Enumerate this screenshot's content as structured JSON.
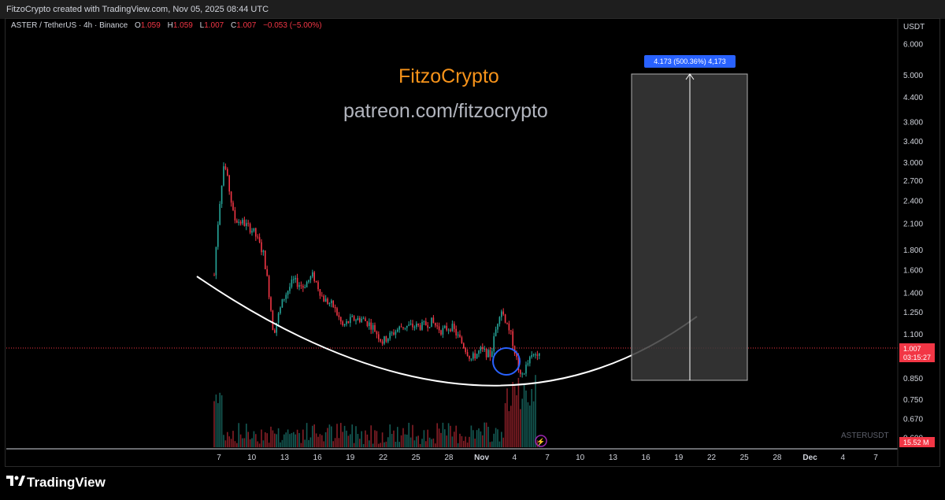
{
  "credit": "FitzoCrypto created with TradingView.com, Nov 05, 2025 08:44 UTC",
  "legend": {
    "symbol": "ASTER / TetherUS · 4h · Binance",
    "o_label": "O",
    "o": "1.059",
    "h_label": "H",
    "h": "1.059",
    "l_label": "L",
    "l": "1.007",
    "c_label": "C",
    "c": "1.007",
    "change": "−0.053 (−5.00%)"
  },
  "watermark": {
    "name": "FitzoCrypto",
    "url": "patreon.com/fitzocrypto"
  },
  "footer_brand": "TradingView",
  "symbol_watermark": "ASTERUSDT",
  "colors": {
    "up": "#26a69a",
    "down": "#f23645",
    "accent": "#2962ff",
    "brand": "#f7931a"
  },
  "chart_data": {
    "type": "candlestick",
    "y_scale": "log",
    "currency": "USDT",
    "y_ticks": [
      "6.000",
      "5.000",
      "4.400",
      "3.800",
      "3.400",
      "3.000",
      "2.700",
      "2.400",
      "2.100",
      "1.800",
      "1.600",
      "1.400",
      "1.250",
      "1.100",
      "1.007",
      "0.850",
      "0.750",
      "0.670",
      "0.600"
    ],
    "x_ticks": [
      "7",
      "10",
      "13",
      "16",
      "19",
      "22",
      "25",
      "28",
      "Nov",
      "4",
      "7",
      "10",
      "13",
      "16",
      "19",
      "22",
      "25",
      "28",
      "Dec",
      "4",
      "7"
    ],
    "current_price": {
      "label": "1.007",
      "countdown": "03:15:27"
    },
    "volume_label": "15.52 M",
    "projection": {
      "label": "4.173 (500.36%) 4,173",
      "from": 0.836,
      "to": 5.0
    },
    "price_path": [
      [
        "Oct 7",
        1.55
      ],
      [
        "Oct 7",
        3.0
      ],
      [
        "Oct 7",
        2.15
      ],
      [
        "Oct 8",
        2.1
      ],
      [
        "Oct 9",
        2.0
      ],
      [
        "Oct 10",
        1.75
      ],
      [
        "Oct 11",
        1.1
      ],
      [
        "Oct 12",
        1.35
      ],
      [
        "Oct 13",
        1.5
      ],
      [
        "Oct 14",
        1.45
      ],
      [
        "Oct 15",
        1.55
      ],
      [
        "Oct 16",
        1.35
      ],
      [
        "Oct 17",
        1.3
      ],
      [
        "Oct 18",
        1.15
      ],
      [
        "Oct 19",
        1.2
      ],
      [
        "Oct 20",
        1.2
      ],
      [
        "Oct 21",
        1.15
      ],
      [
        "Oct 22",
        1.05
      ],
      [
        "Oct 23",
        1.1
      ],
      [
        "Oct 24",
        1.15
      ],
      [
        "Oct 25",
        1.15
      ],
      [
        "Oct 26",
        1.15
      ],
      [
        "Oct 27",
        1.18
      ],
      [
        "Oct 28",
        1.12
      ],
      [
        "Oct 29",
        1.15
      ],
      [
        "Oct 30",
        1.05
      ],
      [
        "Oct 31",
        0.95
      ],
      [
        "Nov 1",
        1.0
      ],
      [
        "Nov 2",
        0.97
      ],
      [
        "Nov 2",
        1.28
      ],
      [
        "Nov 3",
        1.1
      ],
      [
        "Nov 3",
        0.85
      ],
      [
        "Nov 4",
        0.95
      ],
      [
        "Nov 5",
        1.007
      ]
    ]
  }
}
